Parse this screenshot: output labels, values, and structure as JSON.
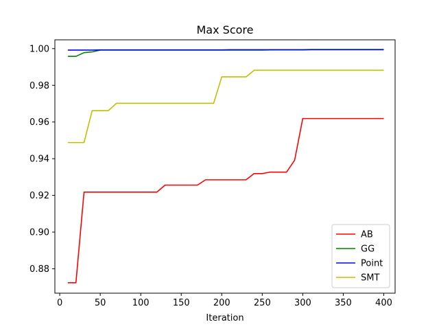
{
  "colors": {
    "AB": "#ff0000",
    "GG": "#008000",
    "Point": "#0000ff",
    "SMT": "#bfbf00"
  },
  "chart_data": {
    "type": "line",
    "title": "Max Score",
    "xlabel": "Iteration",
    "ylabel": "",
    "xlim": [
      -6,
      414
    ],
    "ylim": [
      0.8667,
      1.0048
    ],
    "xticks": [
      0,
      50,
      100,
      150,
      200,
      250,
      300,
      350,
      400
    ],
    "xtick_labels": [
      "0",
      "50",
      "100",
      "150",
      "200",
      "250",
      "300",
      "350",
      "400"
    ],
    "yticks": [
      0.88,
      0.9,
      0.92,
      0.94,
      0.96,
      0.98,
      1.0
    ],
    "ytick_labels": [
      "0.88",
      "0.90",
      "0.92",
      "0.94",
      "0.96",
      "0.98",
      "1.00"
    ],
    "grid": false,
    "legend_position": "lower-right",
    "x": [
      10,
      20,
      30,
      40,
      50,
      60,
      70,
      80,
      90,
      100,
      110,
      120,
      130,
      140,
      150,
      160,
      170,
      180,
      190,
      200,
      210,
      220,
      230,
      240,
      250,
      260,
      270,
      280,
      290,
      300,
      310,
      320,
      330,
      340,
      350,
      360,
      370,
      380,
      390,
      400
    ],
    "series": [
      {
        "name": "AB",
        "color": "#ff0000",
        "values": [
          0.8724,
          0.8724,
          0.9218,
          0.9218,
          0.9218,
          0.9218,
          0.9218,
          0.9218,
          0.9218,
          0.9218,
          0.9218,
          0.9218,
          0.9256,
          0.9256,
          0.9256,
          0.9256,
          0.9256,
          0.9285,
          0.9285,
          0.9285,
          0.9285,
          0.9285,
          0.9285,
          0.9319,
          0.9319,
          0.9327,
          0.9327,
          0.9327,
          0.9392,
          0.9619,
          0.9619,
          0.9619,
          0.9619,
          0.9619,
          0.9619,
          0.9619,
          0.9619,
          0.9619,
          0.9619,
          0.9619
        ]
      },
      {
        "name": "GG",
        "color": "#008000",
        "values": [
          0.9958,
          0.9958,
          0.9978,
          0.9982,
          0.9992,
          0.9992,
          0.9992,
          0.9992,
          0.9992,
          0.9992,
          0.9992,
          0.9992,
          0.9992,
          0.9992,
          0.9992,
          0.9992,
          0.9992,
          0.9992,
          0.9992,
          0.9992,
          0.9992,
          0.9992,
          0.9992,
          0.9992,
          0.9992,
          0.9993,
          0.9993,
          0.9993,
          0.9993,
          0.9993,
          0.9994,
          0.9994,
          0.9994,
          0.9994,
          0.9994,
          0.9994,
          0.9994,
          0.9994,
          0.9994,
          0.9994
        ]
      },
      {
        "name": "Point",
        "color": "#0000ff",
        "values": [
          0.9992,
          0.9992,
          0.9992,
          0.9992,
          0.9993,
          0.9993,
          0.9993,
          0.9993,
          0.9993,
          0.9993,
          0.9993,
          0.9993,
          0.9993,
          0.9993,
          0.9993,
          0.9993,
          0.9993,
          0.9993,
          0.9993,
          0.9993,
          0.9994,
          0.9994,
          0.9994,
          0.9994,
          0.9994,
          0.9994,
          0.9994,
          0.9994,
          0.9994,
          0.9994,
          0.9995,
          0.9995,
          0.9995,
          0.9995,
          0.9995,
          0.9995,
          0.9995,
          0.9995,
          0.9995,
          0.9995
        ]
      },
      {
        "name": "SMT",
        "color": "#bfbf00",
        "values": [
          0.9488,
          0.9488,
          0.9488,
          0.9662,
          0.9662,
          0.9662,
          0.9702,
          0.9702,
          0.9702,
          0.9702,
          0.9702,
          0.9702,
          0.9702,
          0.9702,
          0.9702,
          0.9702,
          0.9702,
          0.9702,
          0.9702,
          0.9846,
          0.9846,
          0.9846,
          0.9846,
          0.9882,
          0.9882,
          0.9882,
          0.9882,
          0.9882,
          0.9882,
          0.9882,
          0.9882,
          0.9882,
          0.9882,
          0.9882,
          0.9882,
          0.9882,
          0.9882,
          0.9882,
          0.9882,
          0.9882
        ]
      }
    ]
  }
}
